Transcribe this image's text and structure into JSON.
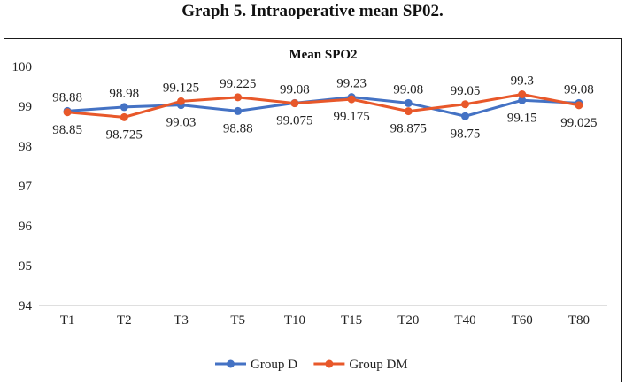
{
  "figure_caption": "Graph 5. Intraoperative mean SP02.",
  "chart_data": {
    "type": "line",
    "title": "Mean SPO2",
    "categories": [
      "T1",
      "T2",
      "T3",
      "T5",
      "T10",
      "T15",
      "T20",
      "T40",
      "T60",
      "T80"
    ],
    "ylim": [
      94,
      100
    ],
    "yticks": [
      94,
      95,
      96,
      97,
      98,
      99,
      100
    ],
    "grid": false,
    "legend_position": "bottom",
    "series": [
      {
        "name": "Group D",
        "color": "#4472C4",
        "values": [
          98.88,
          98.98,
          99.03,
          98.88,
          99.08,
          99.23,
          99.08,
          98.75,
          99.15,
          99.08
        ],
        "labels": [
          "98.88",
          "98.98",
          "99.03",
          "98.88",
          "99.08",
          "99.23",
          "99.08",
          "98.75",
          "99.15",
          "99.08"
        ]
      },
      {
        "name": "Group DM",
        "color": "#E8582A",
        "values": [
          98.85,
          98.725,
          99.125,
          99.225,
          99.075,
          99.175,
          98.875,
          99.05,
          99.3,
          99.025
        ],
        "labels": [
          "98.85",
          "98.725",
          "99.125",
          "99.225",
          "99.075",
          "99.175",
          "98.875",
          "99.05",
          "99.3",
          "99.025"
        ]
      }
    ]
  }
}
